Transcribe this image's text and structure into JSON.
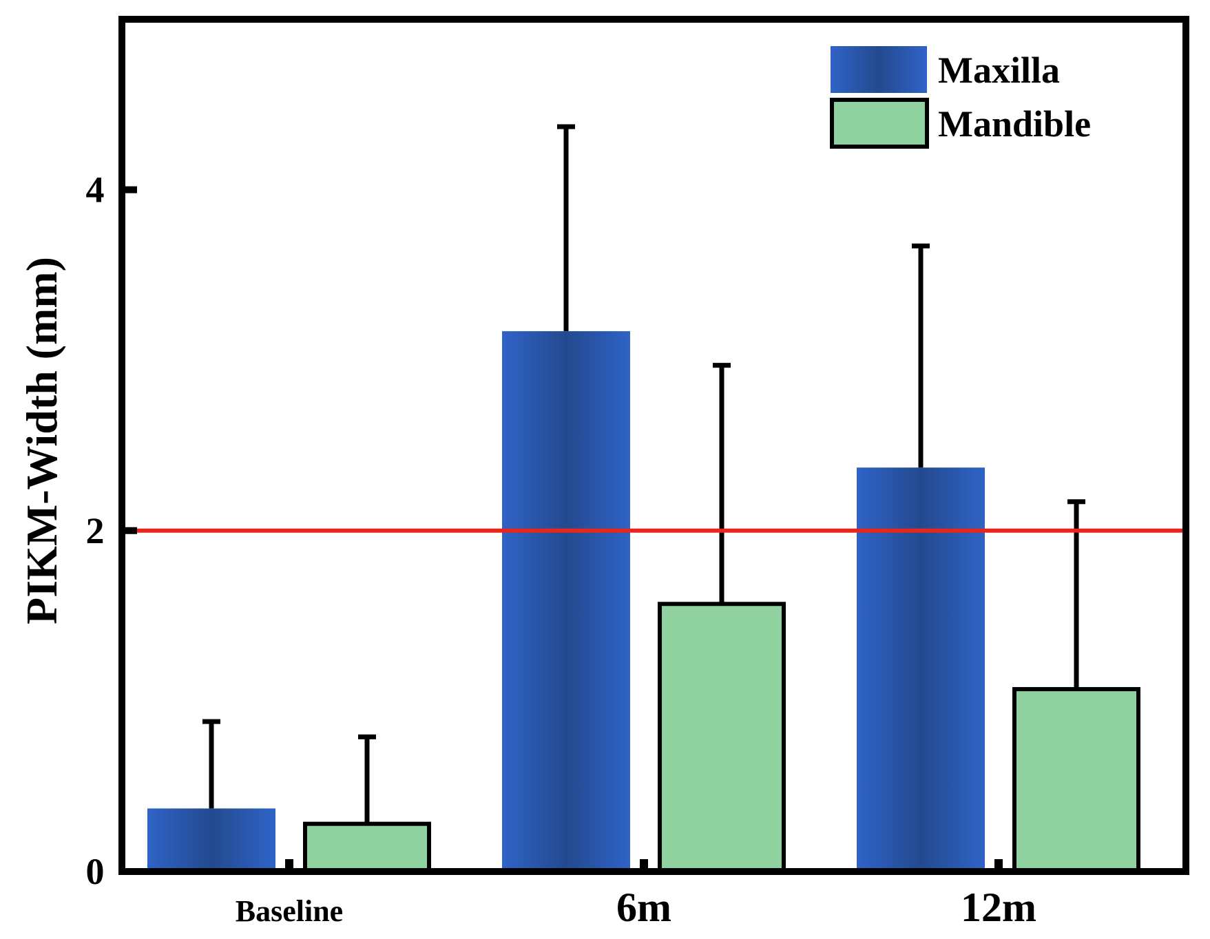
{
  "chart_data": {
    "type": "bar",
    "categories": [
      "Baseline",
      "6m",
      "12m"
    ],
    "series": [
      {
        "name": "Maxilla",
        "values": [
          0.37,
          3.17,
          2.37
        ],
        "errors": [
          0.88,
          4.37,
          3.67
        ],
        "color": "#2f5fbf",
        "color_dark": "#244a92"
      },
      {
        "name": "Mandible",
        "values": [
          0.28,
          1.57,
          1.07
        ],
        "errors": [
          0.79,
          2.97,
          2.17
        ],
        "color": "#8fd29f",
        "stroke": "#000000"
      }
    ],
    "title": "",
    "xlabel": "",
    "ylabel": "PIKM-Width (mm)",
    "ylim": [
      0,
      5
    ],
    "yticks": [
      0,
      2,
      4
    ],
    "ytick_labels": [
      "0",
      "2",
      "4"
    ],
    "reference_line": {
      "y": 2,
      "color": "#e8261c"
    },
    "legend_position": "top-right",
    "grid": false
  }
}
